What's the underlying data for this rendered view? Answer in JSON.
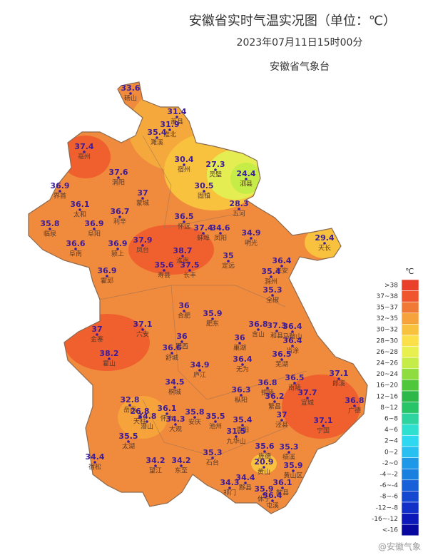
{
  "header": {
    "title": "安徽省实时气温实况图（单位：℃）",
    "time": "2023年07月11日15时00分",
    "agency": "安徽省气象台"
  },
  "stations": [
    {
      "name": "砀山",
      "value": 33.6
    },
    {
      "name": "萧县",
      "value": 31.4
    },
    {
      "name": "淮北",
      "value": 31.9
    },
    {
      "name": "濉溪",
      "value": 35.4
    },
    {
      "name": "亳州",
      "value": 37.4
    },
    {
      "name": "宿州",
      "value": 30.4
    },
    {
      "name": "灵璧",
      "value": 27.3
    },
    {
      "name": "泗县",
      "value": 24.4
    },
    {
      "name": "涡阳",
      "value": 37.6
    },
    {
      "name": "蒙城",
      "value": 37
    },
    {
      "name": "固镇",
      "value": 30.5
    },
    {
      "name": "界首",
      "value": 36.9
    },
    {
      "name": "太和",
      "value": 36.1
    },
    {
      "name": "五河",
      "value": 28.3
    },
    {
      "name": "利辛",
      "value": 36.7
    },
    {
      "name": "临泉",
      "value": 35.8
    },
    {
      "name": "阜阳",
      "value": 36.9
    },
    {
      "name": "怀远",
      "value": 36.5
    },
    {
      "name": "蚌埠",
      "value": 37.4
    },
    {
      "name": "凤阳",
      "value": 34.6
    },
    {
      "name": "明光",
      "value": 34.9
    },
    {
      "name": "天长",
      "value": 29.4
    },
    {
      "name": "阜南",
      "value": 36.6
    },
    {
      "name": "颍上",
      "value": 36.9
    },
    {
      "name": "凤台",
      "value": 37.9
    },
    {
      "name": "淮南",
      "value": 38.7
    },
    {
      "name": "定远",
      "value": 35
    },
    {
      "name": "来安",
      "value": 36.4
    },
    {
      "name": "寿县",
      "value": 35.6
    },
    {
      "name": "长丰",
      "value": 37.5
    },
    {
      "name": "滁州",
      "value": 35.4
    },
    {
      "name": "霍邱",
      "value": 36.9
    },
    {
      "name": "全椒",
      "value": 35.3
    },
    {
      "name": "合肥",
      "value": 36
    },
    {
      "name": "肥东",
      "value": 35.9
    },
    {
      "name": "含山",
      "value": 36.8
    },
    {
      "name": "和县",
      "value": 37.3
    },
    {
      "name": "马鞍山",
      "value": 36.4
    },
    {
      "name": "金寨",
      "value": 37
    },
    {
      "name": "六安",
      "value": 37.1
    },
    {
      "name": "肥西",
      "value": 36
    },
    {
      "name": "巢湖",
      "value": 36
    },
    {
      "name": "当涂",
      "value": 36.4
    },
    {
      "name": "舒城",
      "value": 36.6
    },
    {
      "name": "无为",
      "value": 36.4
    },
    {
      "name": "芜湖",
      "value": 36.5
    },
    {
      "name": "霍山",
      "value": 38.2
    },
    {
      "name": "庐江",
      "value": 34.9
    },
    {
      "name": "桐城",
      "value": 34.5
    },
    {
      "name": "枞阳",
      "value": 36.3
    },
    {
      "name": "南陵",
      "value": 36.5
    },
    {
      "name": "铜陵",
      "value": 36.8
    },
    {
      "name": "郎溪",
      "value": 37.1
    },
    {
      "name": "宣城",
      "value": 37.7
    },
    {
      "name": "繁昌",
      "value": 36.2
    },
    {
      "name": "广德",
      "value": 36.8
    },
    {
      "name": "岳西",
      "value": 32.8
    },
    {
      "name": "怀宁",
      "value": 36.1
    },
    {
      "name": "安庆",
      "value": 35.8
    },
    {
      "name": "池州",
      "value": 35.5
    },
    {
      "name": "青阳",
      "value": 35.4
    },
    {
      "name": "泾县",
      "value": 37
    },
    {
      "name": "天柱",
      "value": 26.8
    },
    {
      "name": "潜山",
      "value": 34.8
    },
    {
      "name": "大观",
      "value": 34.3
    },
    {
      "name": "宁国",
      "value": 37.1
    },
    {
      "name": "九华山",
      "value": 31.5
    },
    {
      "name": "太湖",
      "value": 35.5
    },
    {
      "name": "旌德",
      "value": 35.6
    },
    {
      "name": "绩溪",
      "value": 35.3
    },
    {
      "name": "石台",
      "value": 35.3
    },
    {
      "name": "宿松",
      "value": 34.4
    },
    {
      "name": "望江",
      "value": 34.2
    },
    {
      "name": "东至",
      "value": 34.2
    },
    {
      "name": "黄山",
      "value": 20.9
    },
    {
      "name": "黄山区",
      "value": 35.9
    },
    {
      "name": "黟县",
      "value": 34.4
    },
    {
      "name": "祁门",
      "value": 34.3
    },
    {
      "name": "歙县",
      "value": 36.1
    },
    {
      "name": "休宁",
      "value": 35.9
    },
    {
      "name": "屯溪",
      "value": 36.4
    }
  ],
  "legend": {
    "unit": "℃",
    "items": [
      {
        "label": ">38",
        "color": "#e8402a"
      },
      {
        "label": "37~38",
        "color": "#f0562e"
      },
      {
        "label": "35~37",
        "color": "#f07a35"
      },
      {
        "label": "32~35",
        "color": "#f5a33a"
      },
      {
        "label": "30~32",
        "color": "#f8c23e"
      },
      {
        "label": "28~30",
        "color": "#fbe04a"
      },
      {
        "label": "26~28",
        "color": "#e8f050"
      },
      {
        "label": "24~26",
        "color": "#c6ec48"
      },
      {
        "label": "20~24",
        "color": "#8fdc3e"
      },
      {
        "label": "16~20",
        "color": "#4ec83a"
      },
      {
        "label": "12~16",
        "color": "#2eb84a"
      },
      {
        "label": "8~12",
        "color": "#28c468"
      },
      {
        "label": "6~8",
        "color": "#2ed4a0"
      },
      {
        "label": "4~6",
        "color": "#2ee0d0"
      },
      {
        "label": "2~4",
        "color": "#2ed8f0"
      },
      {
        "label": "0~2",
        "color": "#28c0f0"
      },
      {
        "label": "-2~0",
        "color": "#2098e8"
      },
      {
        "label": "-4~-2",
        "color": "#1a80e0"
      },
      {
        "label": "-6~-4",
        "color": "#1860d8"
      },
      {
        "label": "-8~-6",
        "color": "#1448d0"
      },
      {
        "label": "-12~-8",
        "color": "#1030c8"
      },
      {
        "label": "-16~-12",
        "color": "#0c18b8"
      },
      {
        "label": "<-16",
        "color": "#0808a0"
      }
    ]
  },
  "watermark": "@安徽气象"
}
